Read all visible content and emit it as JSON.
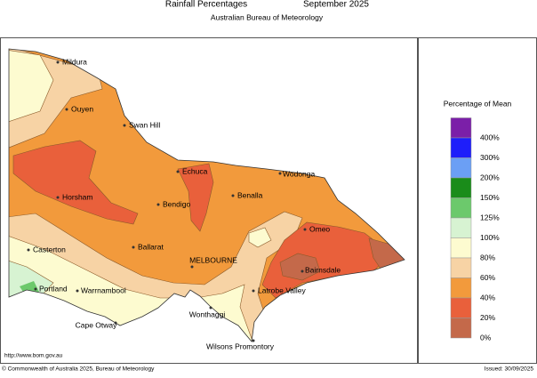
{
  "header": {
    "title": "Rainfall Percentages",
    "period": "September 2025",
    "subtitle": "Australian Bureau of Meteorology"
  },
  "legend": {
    "title": "Percentage of Mean",
    "items": [
      {
        "label": "400%",
        "color": "#7b1fa8"
      },
      {
        "label": "300%",
        "color": "#1e1efa"
      },
      {
        "label": "200%",
        "color": "#6b9ff5"
      },
      {
        "label": "150%",
        "color": "#1a8c1a"
      },
      {
        "label": "125%",
        "color": "#6cc96c"
      },
      {
        "label": "100%",
        "color": "#d7f3d2"
      },
      {
        "label": "80%",
        "color": "#fdfbd0"
      },
      {
        "label": "60%",
        "color": "#f7d3a5"
      },
      {
        "label": "40%",
        "color": "#f29a3c"
      },
      {
        "label": "20%",
        "color": "#e9603b"
      },
      {
        "label": "0%",
        "color": "#c4694a"
      }
    ]
  },
  "places": [
    "Mildura",
    "Ouyen",
    "Swan Hill",
    "Echuca",
    "Wodonga",
    "Horsham",
    "Bendigo",
    "Benalla",
    "Omeo",
    "Casterton",
    "Ballarat",
    "MELBOURNE",
    "Bairnsdale",
    "Portland",
    "Warrnambool",
    "Latrobe Valley",
    "Wonthaggi",
    "Cape Otway",
    "Wilsons Promontory"
  ],
  "footer": {
    "url": "http://www.bom.gov.au",
    "copyright": "© Commonwealth of Australia 2025, Bureau of Meteorology",
    "issued": "Issued: 30/09/2025"
  }
}
